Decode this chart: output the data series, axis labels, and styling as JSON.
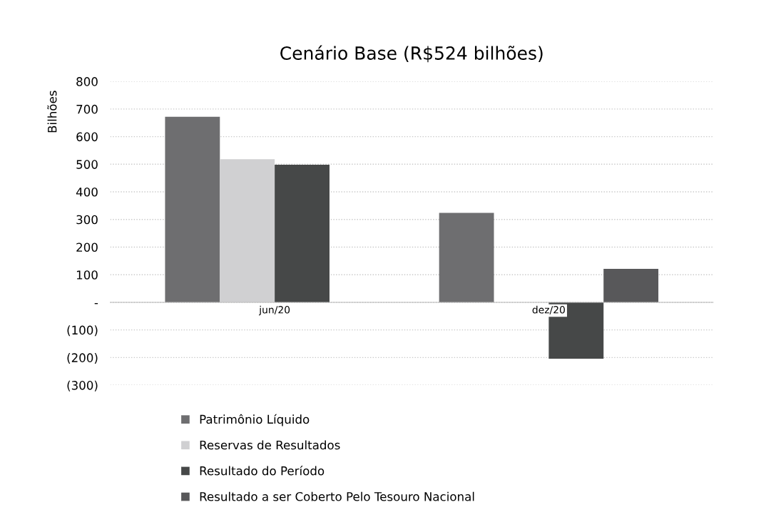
{
  "chart_data": {
    "type": "bar",
    "title": "Cenário Base (R$524 bilhões)",
    "ylabel": "Bilhões",
    "categories": [
      "jun/20",
      "dez/20"
    ],
    "series": [
      {
        "name": "Patrimônio Líquido",
        "color": "#6e6e70",
        "values": [
          672,
          324
        ]
      },
      {
        "name": "Reservas de Resultados",
        "color": "#d0d0d2",
        "values": [
          518,
          null
        ]
      },
      {
        "name": "Resultado do Período",
        "color": "#464848",
        "values": [
          498,
          -204
        ]
      },
      {
        "name": "Resultado a ser Coberto Pelo Tesouro Nacional",
        "color": "#58585a",
        "values": [
          null,
          121
        ]
      }
    ],
    "ylim": [
      -300,
      800
    ],
    "yticks": [
      {
        "value": -300,
        "label": "(300)"
      },
      {
        "value": -200,
        "label": "(200)"
      },
      {
        "value": -100,
        "label": "(100)"
      },
      {
        "value": 0,
        "label": "-"
      },
      100,
      200,
      300,
      400,
      500,
      600,
      700,
      800
    ],
    "grid": "y",
    "legend": "bottom"
  }
}
